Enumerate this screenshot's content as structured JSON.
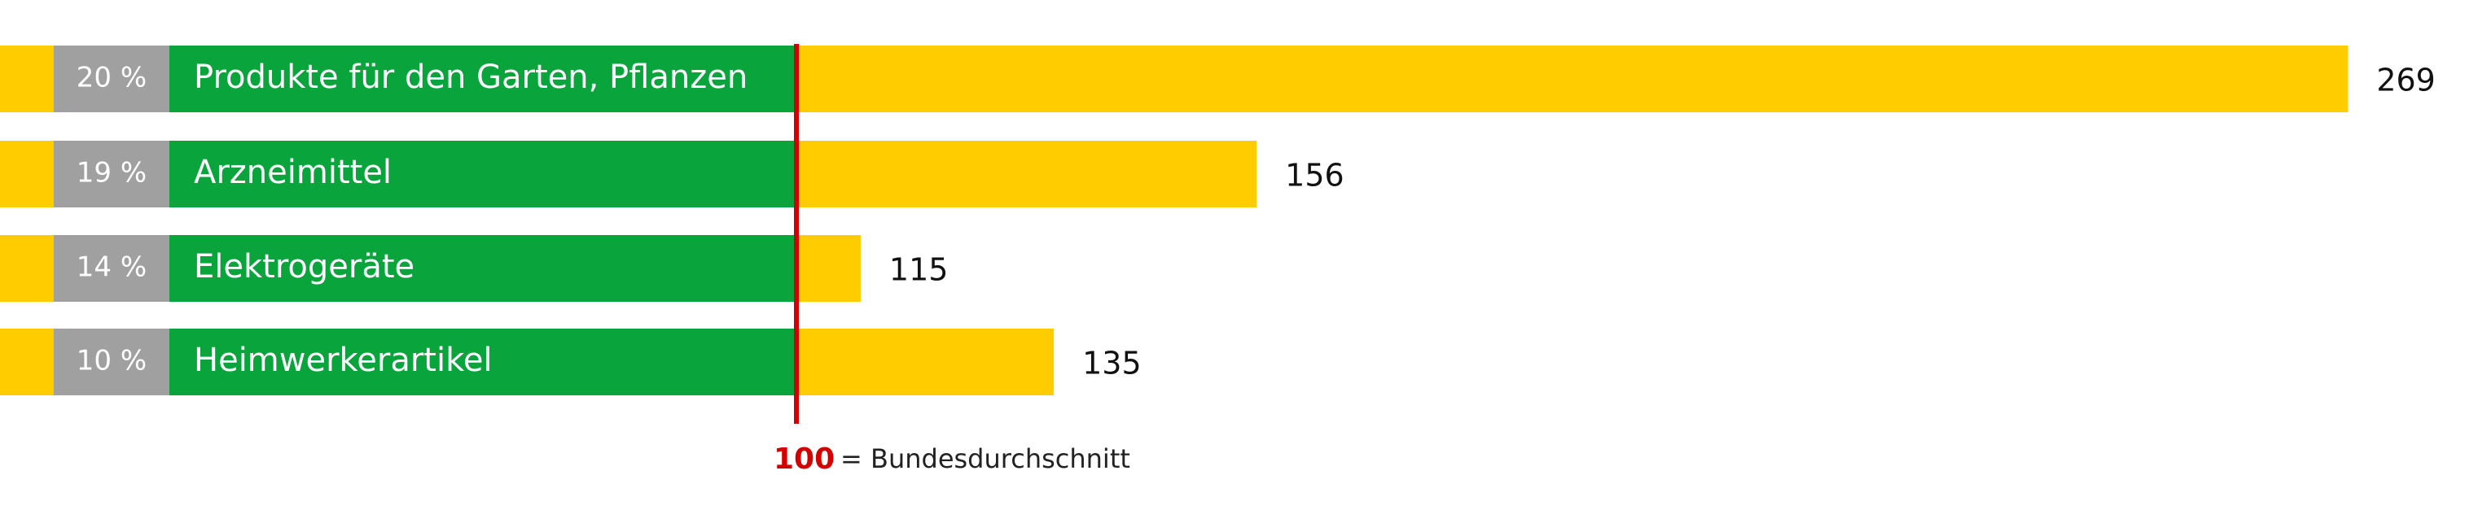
{
  "chart_data": {
    "type": "bar",
    "orientation": "horizontal",
    "shares": [
      "20 %",
      "19 %",
      "14 %",
      "10 %"
    ],
    "categories": [
      "Produkte für den Garten, Pflanzen",
      "Arzneimittel",
      "Elektrogeräte",
      "Heimwerkerartikel"
    ],
    "values": [
      269,
      156,
      115,
      135
    ],
    "color": "#ffcc00",
    "share_color": "#a0a0a0",
    "category_color": "#0aa43c",
    "reference": {
      "value": 100,
      "text": "= Bundesdurchschnitt",
      "color": "#d40000"
    }
  }
}
